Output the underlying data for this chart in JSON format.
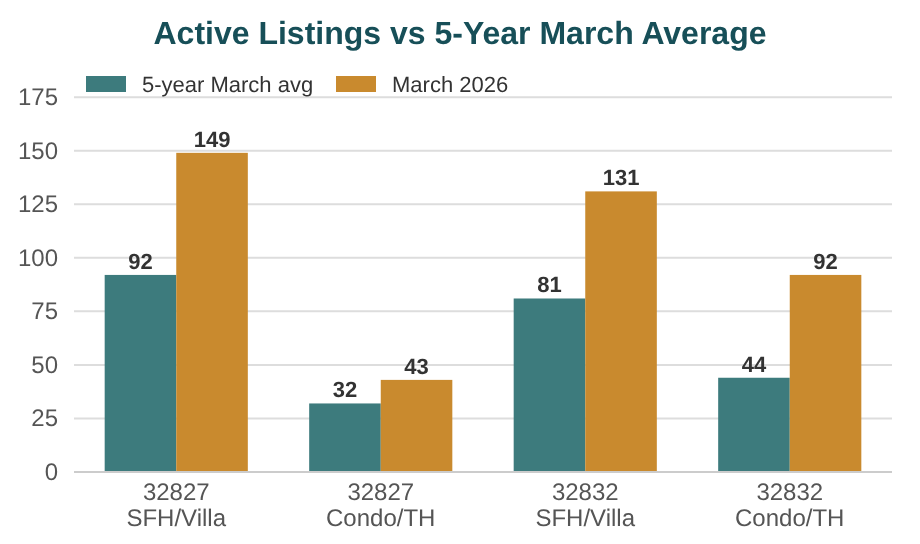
{
  "chart_data": {
    "type": "bar",
    "title": "Active Listings vs 5-Year March Average",
    "categories": [
      "32827\nSFH/Villa",
      "32827\nCondo/TH",
      "32832\nSFH/Villa",
      "32832\nCondo/TH"
    ],
    "series": [
      {
        "name": "5-year March avg",
        "color": "#3d7b7d",
        "values": [
          92,
          32,
          81,
          44
        ]
      },
      {
        "name": "March 2026",
        "color": "#c98a2e",
        "values": [
          149,
          43,
          131,
          92
        ]
      }
    ],
    "ylim": [
      0,
      183
    ],
    "yticks": [
      0,
      25,
      50,
      75,
      100,
      125,
      150,
      175
    ],
    "grid": "y",
    "legend": "top left",
    "data_labels": true
  }
}
